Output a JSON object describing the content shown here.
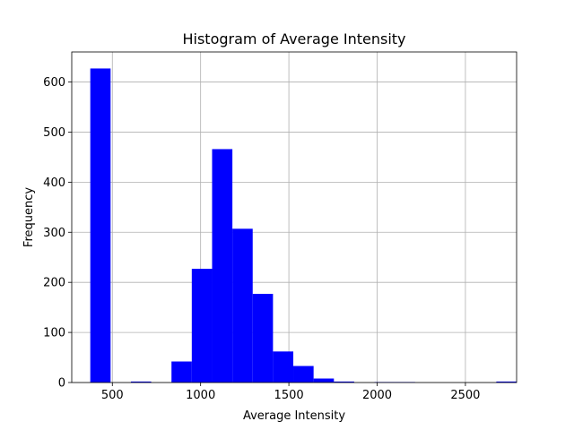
{
  "chart_data": {
    "type": "bar",
    "title": "Histogram of Average Intensity",
    "xlabel": "Average Intensity",
    "ylabel": "Frequency",
    "xlim": [
      270,
      2790
    ],
    "ylim": [
      0,
      660
    ],
    "xticks": [
      500,
      1000,
      1500,
      2000,
      2500
    ],
    "yticks": [
      0,
      100,
      200,
      300,
      400,
      500,
      600
    ],
    "bin_start": 375,
    "bin_width": 115,
    "values": [
      627,
      0,
      2,
      0,
      42,
      227,
      466,
      307,
      177,
      62,
      33,
      8,
      2,
      0,
      1,
      1,
      0,
      0,
      0,
      0,
      2
    ],
    "color": "#0000ff",
    "grid": true
  }
}
